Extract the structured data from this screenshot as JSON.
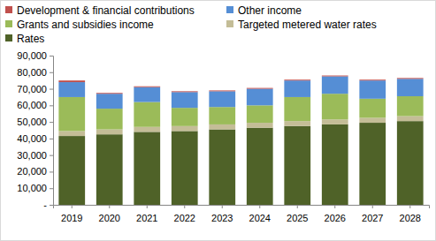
{
  "chart_data": {
    "type": "bar",
    "stacked": true,
    "grid": false,
    "legend": "top",
    "categories": [
      "2019",
      "2020",
      "2021",
      "2022",
      "2023",
      "2024",
      "2025",
      "2026",
      "2027",
      "2028"
    ],
    "series": [
      {
        "name": "Rates",
        "color": "#4f6228",
        "values": [
          41500,
          42500,
          44000,
          44500,
          45500,
          46500,
          47500,
          48500,
          49500,
          50500
        ]
      },
      {
        "name": "Targeted metered water rates",
        "color": "#c4bd97",
        "values": [
          3000,
          3000,
          3000,
          3000,
          3000,
          3000,
          3000,
          3000,
          3000,
          3000
        ]
      },
      {
        "name": "Grants and subsidies income",
        "color": "#9bbb59",
        "values": [
          20500,
          12500,
          15000,
          11000,
          10500,
          10500,
          14500,
          15500,
          11500,
          12000
        ]
      },
      {
        "name": "Other income",
        "color": "#558ed5",
        "values": [
          9000,
          9000,
          9000,
          9500,
          9500,
          10000,
          10000,
          10500,
          11000,
          10500
        ]
      },
      {
        "name": "Development & financial contributions",
        "color": "#c0504d",
        "values": [
          1000,
          500,
          500,
          500,
          500,
          500,
          500,
          500,
          500,
          500
        ]
      }
    ],
    "ylim": [
      0,
      90000
    ],
    "yticks": [
      {
        "value": 0,
        "label": "-"
      },
      {
        "value": 10000,
        "label": "10,000"
      },
      {
        "value": 20000,
        "label": "20,000"
      },
      {
        "value": 30000,
        "label": "30,000"
      },
      {
        "value": 40000,
        "label": "40,000"
      },
      {
        "value": 50000,
        "label": "50,000"
      },
      {
        "value": 60000,
        "label": "60,000"
      },
      {
        "value": 70000,
        "label": "70,000"
      },
      {
        "value": 80000,
        "label": "80,000"
      },
      {
        "value": 90000,
        "label": "90,000"
      }
    ]
  }
}
